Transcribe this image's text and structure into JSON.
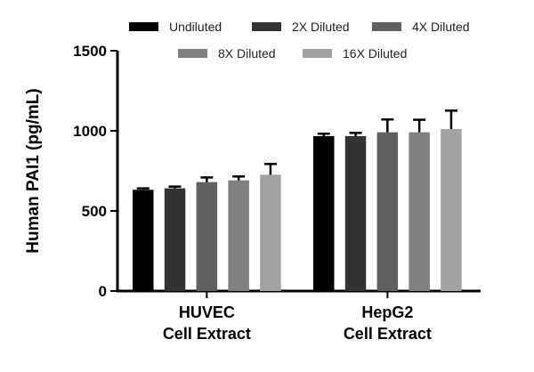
{
  "chart_data": {
    "type": "bar",
    "title": "",
    "xlabel": "",
    "ylabel": "Human PAI1 (pg/mL)",
    "ylim": [
      0,
      1500
    ],
    "yticks": [
      0,
      500,
      1000,
      1500
    ],
    "grid": false,
    "legend_position": "top",
    "categories": [
      [
        "HUVEC",
        "Cell Extract"
      ],
      [
        "HepG2",
        "Cell Extract"
      ]
    ],
    "series": [
      {
        "name": "Undiluted",
        "color": "#000000",
        "values": [
          632,
          967
        ],
        "errors": [
          9,
          15
        ]
      },
      {
        "name": "2X Diluted",
        "color": "#333333",
        "values": [
          641,
          967
        ],
        "errors": [
          11,
          20
        ]
      },
      {
        "name": "4X Diluted",
        "color": "#616161",
        "values": [
          680,
          991
        ],
        "errors": [
          29,
          80
        ]
      },
      {
        "name": "8X Diluted",
        "color": "#808080",
        "values": [
          691,
          991
        ],
        "errors": [
          24,
          78
        ]
      },
      {
        "name": "16X Diluted",
        "color": "#a2a2a4",
        "values": [
          726,
          1011
        ],
        "errors": [
          67,
          115
        ]
      }
    ]
  }
}
